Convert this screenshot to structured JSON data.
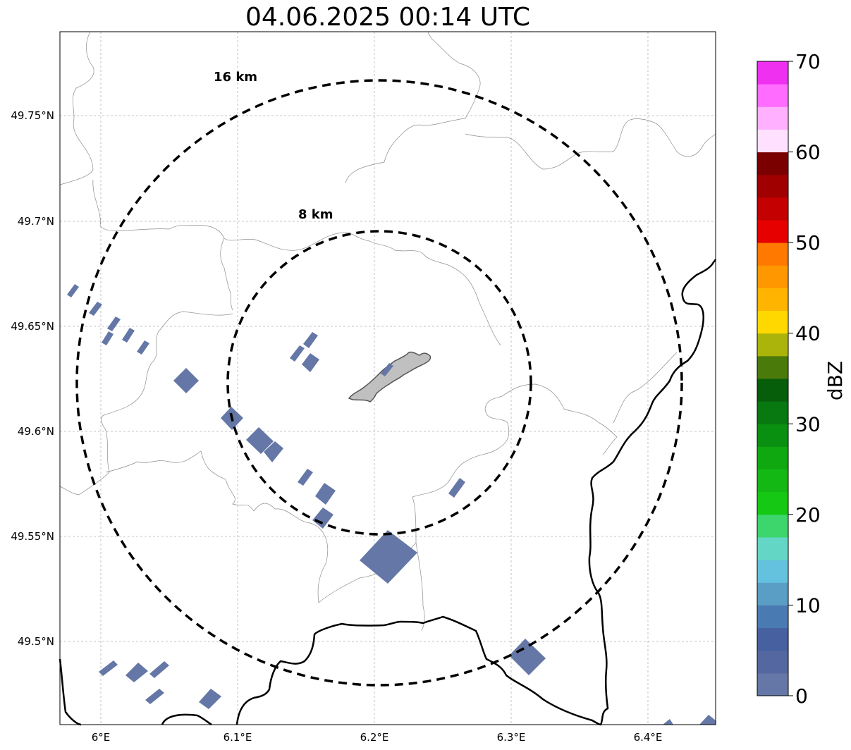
{
  "title": "04.06.2025 00:14 UTC",
  "map": {
    "lat_ticks": [
      "49.75°N",
      "49.7°N",
      "49.65°N",
      "49.6°N",
      "49.55°N",
      "49.5°N"
    ],
    "lon_ticks": [
      "6°E",
      "6.1°E",
      "6.2°E",
      "6.3°E",
      "6.4°E"
    ],
    "rings": [
      {
        "label": "16 km",
        "radius_km": 16
      },
      {
        "label": "8 km",
        "radius_km": 8
      }
    ],
    "echo_color": "#6477a6",
    "city_fill": "#c0c0c0",
    "grid": "dashed light gray"
  },
  "colorbar": {
    "label": "dBZ",
    "ticks": [
      "0",
      "10",
      "20",
      "30",
      "40",
      "50",
      "60",
      "70"
    ],
    "min": 0,
    "max": 70,
    "step": 2.5,
    "colors": [
      "#6477a6",
      "#5567a0",
      "#4660a0",
      "#4a7ab2",
      "#5a9ec6",
      "#64c2de",
      "#64d6c6",
      "#3cd66c",
      "#14c814",
      "#14b814",
      "#10a810",
      "#0a9010",
      "#087810",
      "#065e0a",
      "#4a7a0a",
      "#aab40a",
      "#ffd800",
      "#ffb400",
      "#ff9800",
      "#ff7800",
      "#e60000",
      "#c40000",
      "#a00000",
      "#7a0000",
      "#ffe0ff",
      "#ffb0ff",
      "#ff6cff",
      "#f030f0"
    ]
  }
}
